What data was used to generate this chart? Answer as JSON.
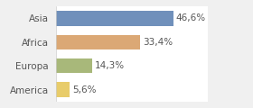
{
  "categories": [
    "Asia",
    "Africa",
    "Europa",
    "America"
  ],
  "values": [
    46.6,
    33.4,
    14.3,
    5.6
  ],
  "labels": [
    "46,6%",
    "33,4%",
    "14,3%",
    "5,6%"
  ],
  "bar_colors": [
    "#7090bb",
    "#dba875",
    "#a8b87a",
    "#e8cc6a"
  ],
  "background_color": "#ffffff",
  "outer_bg": "#f0f0f0",
  "xlim": [
    0,
    60
  ],
  "bar_height": 0.62,
  "label_fontsize": 7.5,
  "tick_fontsize": 7.5
}
